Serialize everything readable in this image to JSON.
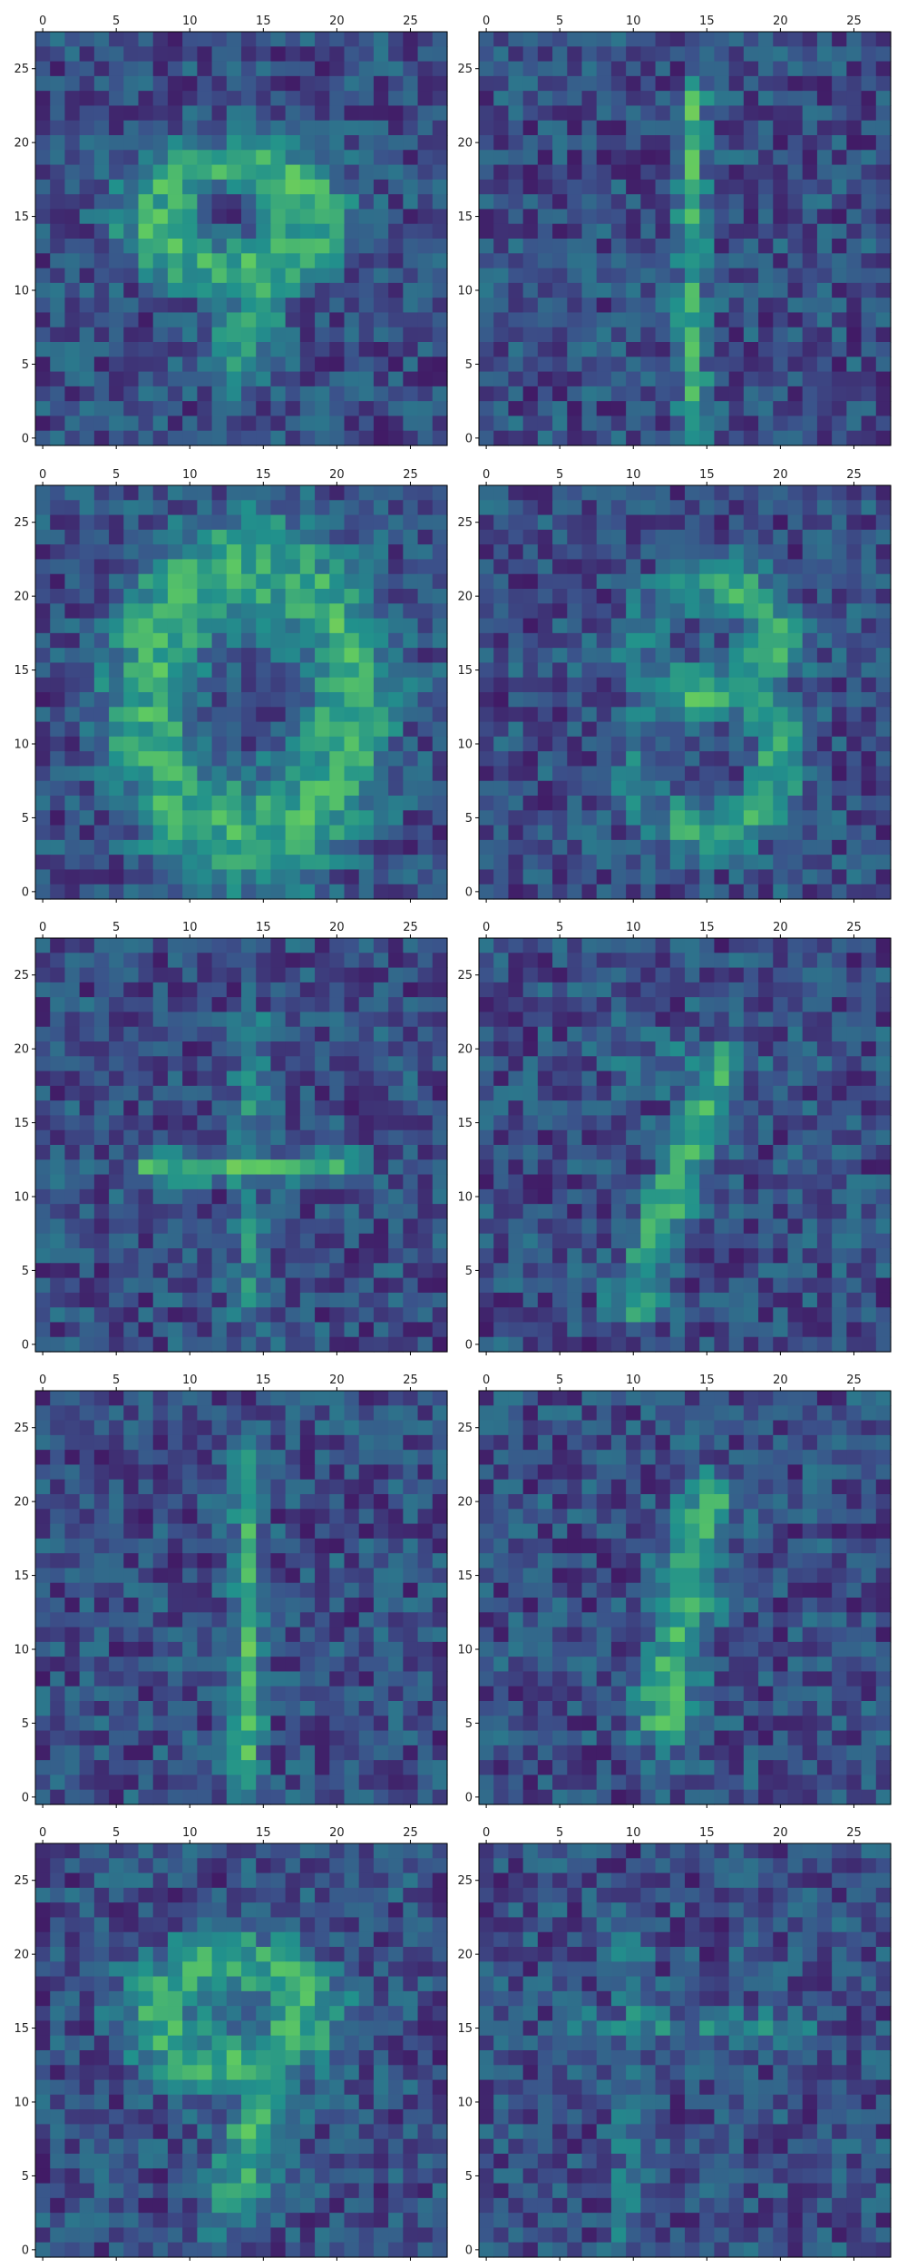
{
  "chart_data": {
    "type": "heatmap",
    "layout": {
      "rows": 5,
      "cols": 2
    },
    "colormap": "viridis",
    "grid_size": [
      28,
      28
    ],
    "x_ticks": [
      0,
      5,
      10,
      15,
      20,
      25
    ],
    "y_ticks": [
      0,
      5,
      10,
      15,
      20,
      25
    ],
    "x_tick_labels": [
      "0",
      "5",
      "10",
      "15",
      "20",
      "25"
    ],
    "y_tick_labels": [
      "0",
      "5",
      "10",
      "15",
      "20",
      "25"
    ],
    "xlim": [
      -0.5,
      27.5
    ],
    "ylim": [
      27.5,
      -0.5
    ],
    "x_axis_position": "top",
    "panels": [
      {
        "pattern": "digit-9-upright"
      },
      {
        "pattern": "vertical-line"
      },
      {
        "pattern": "digit-0"
      },
      {
        "pattern": "digit-3"
      },
      {
        "pattern": "plus-sign"
      },
      {
        "pattern": "digit-7-diagonal"
      },
      {
        "pattern": "vertical-line"
      },
      {
        "pattern": "digit-1-slanted"
      },
      {
        "pattern": "digit-9-slanted"
      },
      {
        "pattern": "faint-plus"
      }
    ]
  }
}
